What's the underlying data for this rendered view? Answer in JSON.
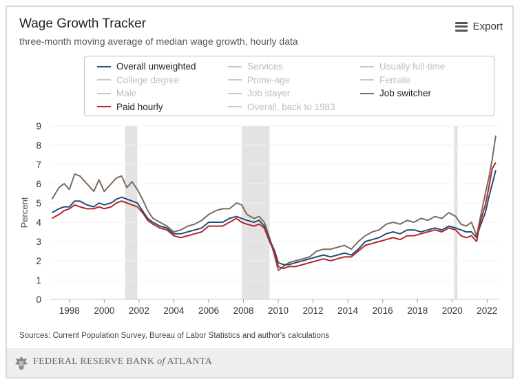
{
  "header": {
    "title": "Wage Growth Tracker",
    "subtitle": "three-month moving average of median wage growth, hourly data",
    "export_label": "Export",
    "export_icon": "menu-icon"
  },
  "legend": {
    "items": [
      {
        "label": "Overall unweighted",
        "color": "#1f4e79",
        "active": true
      },
      {
        "label": "Services",
        "color": "#c8c8c8",
        "active": false
      },
      {
        "label": "Usually full-time",
        "color": "#c8c8c8",
        "active": false
      },
      {
        "label": "College degree",
        "color": "#c8c8c8",
        "active": false
      },
      {
        "label": "Prime-age",
        "color": "#c8c8c8",
        "active": false
      },
      {
        "label": "Female",
        "color": "#c8c8c8",
        "active": false
      },
      {
        "label": "Male",
        "color": "#c8c8c8",
        "active": false
      },
      {
        "label": "Job stayer",
        "color": "#c8c8c8",
        "active": false
      },
      {
        "label": "Job switcher",
        "color": "#7b6a5d",
        "active": true
      },
      {
        "label": "Paid hourly",
        "color": "#b5262b",
        "active": true
      },
      {
        "label": "Overall, back to 1983",
        "color": "#c8c8c8",
        "active": false
      }
    ]
  },
  "chart_data": {
    "type": "line",
    "ylabel": "Percent",
    "ylim": [
      0,
      9
    ],
    "yticks": [
      "0",
      "1",
      "2",
      "3",
      "4",
      "5",
      "6",
      "7",
      "8",
      "9"
    ],
    "xlim": [
      1996.9,
      2022.7
    ],
    "xticks": [
      "1998",
      "2000",
      "2002",
      "2004",
      "2006",
      "2008",
      "2010",
      "2012",
      "2014",
      "2016",
      "2018",
      "2020",
      "2022"
    ],
    "recessions": [
      [
        2001.2,
        2001.9
      ],
      [
        2007.9,
        2009.5
      ],
      [
        2020.1,
        2020.3
      ]
    ],
    "series": [
      {
        "name": "Job switcher",
        "color": "#7b6a5d",
        "points": [
          [
            1997.0,
            5.2
          ],
          [
            1997.4,
            5.8
          ],
          [
            1997.7,
            6.0
          ],
          [
            1998.0,
            5.7
          ],
          [
            1998.3,
            6.5
          ],
          [
            1998.6,
            6.4
          ],
          [
            1999.0,
            6.0
          ],
          [
            1999.4,
            5.6
          ],
          [
            1999.7,
            6.2
          ],
          [
            2000.0,
            5.6
          ],
          [
            2000.4,
            6.0
          ],
          [
            2000.7,
            6.3
          ],
          [
            2001.0,
            6.4
          ],
          [
            2001.3,
            5.8
          ],
          [
            2001.6,
            6.1
          ],
          [
            2001.9,
            5.7
          ],
          [
            2002.2,
            5.2
          ],
          [
            2002.5,
            4.6
          ],
          [
            2002.8,
            4.2
          ],
          [
            2003.2,
            4.0
          ],
          [
            2003.6,
            3.8
          ],
          [
            2004.0,
            3.5
          ],
          [
            2004.4,
            3.6
          ],
          [
            2004.8,
            3.8
          ],
          [
            2005.2,
            3.9
          ],
          [
            2005.6,
            4.1
          ],
          [
            2006.0,
            4.4
          ],
          [
            2006.4,
            4.6
          ],
          [
            2006.8,
            4.7
          ],
          [
            2007.2,
            4.7
          ],
          [
            2007.6,
            5.0
          ],
          [
            2007.9,
            4.9
          ],
          [
            2008.2,
            4.4
          ],
          [
            2008.6,
            4.2
          ],
          [
            2008.9,
            4.3
          ],
          [
            2009.2,
            4.0
          ],
          [
            2009.5,
            3.2
          ],
          [
            2009.8,
            2.2
          ],
          [
            2010.0,
            1.5
          ],
          [
            2010.3,
            1.7
          ],
          [
            2010.6,
            1.9
          ],
          [
            2011.0,
            2.0
          ],
          [
            2011.4,
            2.1
          ],
          [
            2011.8,
            2.2
          ],
          [
            2012.2,
            2.5
          ],
          [
            2012.6,
            2.6
          ],
          [
            2013.0,
            2.6
          ],
          [
            2013.4,
            2.7
          ],
          [
            2013.8,
            2.8
          ],
          [
            2014.2,
            2.6
          ],
          [
            2014.6,
            3.0
          ],
          [
            2015.0,
            3.3
          ],
          [
            2015.4,
            3.5
          ],
          [
            2015.8,
            3.6
          ],
          [
            2016.2,
            3.9
          ],
          [
            2016.6,
            4.0
          ],
          [
            2017.0,
            3.9
          ],
          [
            2017.4,
            4.1
          ],
          [
            2017.8,
            4.0
          ],
          [
            2018.2,
            4.2
          ],
          [
            2018.6,
            4.1
          ],
          [
            2019.0,
            4.3
          ],
          [
            2019.4,
            4.2
          ],
          [
            2019.8,
            4.5
          ],
          [
            2020.2,
            4.3
          ],
          [
            2020.5,
            3.9
          ],
          [
            2020.8,
            3.8
          ],
          [
            2021.1,
            4.0
          ],
          [
            2021.4,
            3.3
          ],
          [
            2021.6,
            4.2
          ],
          [
            2021.9,
            5.5
          ],
          [
            2022.1,
            6.3
          ],
          [
            2022.3,
            7.3
          ],
          [
            2022.5,
            8.5
          ]
        ]
      },
      {
        "name": "Overall unweighted",
        "color": "#1f4e79",
        "points": [
          [
            1997.0,
            4.5
          ],
          [
            1997.4,
            4.7
          ],
          [
            1997.7,
            4.8
          ],
          [
            1998.0,
            4.8
          ],
          [
            1998.3,
            5.1
          ],
          [
            1998.6,
            5.1
          ],
          [
            1999.0,
            4.9
          ],
          [
            1999.4,
            4.8
          ],
          [
            1999.7,
            5.0
          ],
          [
            2000.0,
            4.9
          ],
          [
            2000.4,
            5.0
          ],
          [
            2000.7,
            5.2
          ],
          [
            2001.0,
            5.3
          ],
          [
            2001.3,
            5.2
          ],
          [
            2001.6,
            5.1
          ],
          [
            2001.9,
            5.0
          ],
          [
            2002.2,
            4.6
          ],
          [
            2002.5,
            4.2
          ],
          [
            2002.8,
            4.0
          ],
          [
            2003.2,
            3.8
          ],
          [
            2003.6,
            3.7
          ],
          [
            2004.0,
            3.4
          ],
          [
            2004.4,
            3.4
          ],
          [
            2004.8,
            3.5
          ],
          [
            2005.2,
            3.6
          ],
          [
            2005.6,
            3.7
          ],
          [
            2006.0,
            4.0
          ],
          [
            2006.4,
            4.0
          ],
          [
            2006.8,
            4.0
          ],
          [
            2007.2,
            4.2
          ],
          [
            2007.6,
            4.3
          ],
          [
            2007.9,
            4.2
          ],
          [
            2008.2,
            4.1
          ],
          [
            2008.6,
            4.0
          ],
          [
            2008.9,
            4.1
          ],
          [
            2009.2,
            3.8
          ],
          [
            2009.5,
            3.1
          ],
          [
            2009.8,
            2.5
          ],
          [
            2010.0,
            1.9
          ],
          [
            2010.3,
            1.8
          ],
          [
            2010.6,
            1.8
          ],
          [
            2011.0,
            1.9
          ],
          [
            2011.4,
            2.0
          ],
          [
            2011.8,
            2.1
          ],
          [
            2012.2,
            2.2
          ],
          [
            2012.6,
            2.3
          ],
          [
            2013.0,
            2.2
          ],
          [
            2013.4,
            2.3
          ],
          [
            2013.8,
            2.4
          ],
          [
            2014.2,
            2.3
          ],
          [
            2014.6,
            2.6
          ],
          [
            2015.0,
            3.0
          ],
          [
            2015.4,
            3.1
          ],
          [
            2015.8,
            3.2
          ],
          [
            2016.2,
            3.4
          ],
          [
            2016.6,
            3.5
          ],
          [
            2017.0,
            3.4
          ],
          [
            2017.4,
            3.6
          ],
          [
            2017.8,
            3.6
          ],
          [
            2018.2,
            3.5
          ],
          [
            2018.6,
            3.6
          ],
          [
            2019.0,
            3.7
          ],
          [
            2019.4,
            3.6
          ],
          [
            2019.8,
            3.8
          ],
          [
            2020.2,
            3.7
          ],
          [
            2020.5,
            3.6
          ],
          [
            2020.8,
            3.5
          ],
          [
            2021.1,
            3.5
          ],
          [
            2021.4,
            3.2
          ],
          [
            2021.6,
            3.8
          ],
          [
            2021.9,
            4.5
          ],
          [
            2022.1,
            5.3
          ],
          [
            2022.3,
            6.0
          ],
          [
            2022.5,
            6.7
          ]
        ]
      },
      {
        "name": "Paid hourly",
        "color": "#b5262b",
        "points": [
          [
            1997.0,
            4.2
          ],
          [
            1997.4,
            4.4
          ],
          [
            1997.7,
            4.6
          ],
          [
            1998.0,
            4.7
          ],
          [
            1998.3,
            4.9
          ],
          [
            1998.6,
            4.8
          ],
          [
            1999.0,
            4.7
          ],
          [
            1999.4,
            4.7
          ],
          [
            1999.7,
            4.8
          ],
          [
            2000.0,
            4.7
          ],
          [
            2000.4,
            4.8
          ],
          [
            2000.7,
            5.0
          ],
          [
            2001.0,
            5.1
          ],
          [
            2001.3,
            5.0
          ],
          [
            2001.6,
            4.9
          ],
          [
            2001.9,
            4.8
          ],
          [
            2002.2,
            4.5
          ],
          [
            2002.5,
            4.1
          ],
          [
            2002.8,
            3.9
          ],
          [
            2003.2,
            3.7
          ],
          [
            2003.6,
            3.6
          ],
          [
            2004.0,
            3.3
          ],
          [
            2004.4,
            3.2
          ],
          [
            2004.8,
            3.3
          ],
          [
            2005.2,
            3.4
          ],
          [
            2005.6,
            3.5
          ],
          [
            2006.0,
            3.8
          ],
          [
            2006.4,
            3.8
          ],
          [
            2006.8,
            3.8
          ],
          [
            2007.2,
            4.0
          ],
          [
            2007.6,
            4.2
          ],
          [
            2007.9,
            4.0
          ],
          [
            2008.2,
            3.9
          ],
          [
            2008.6,
            3.8
          ],
          [
            2008.9,
            3.9
          ],
          [
            2009.2,
            3.7
          ],
          [
            2009.5,
            3.0
          ],
          [
            2009.8,
            2.4
          ],
          [
            2010.0,
            1.7
          ],
          [
            2010.3,
            1.6
          ],
          [
            2010.6,
            1.7
          ],
          [
            2011.0,
            1.7
          ],
          [
            2011.4,
            1.8
          ],
          [
            2011.8,
            1.9
          ],
          [
            2012.2,
            2.0
          ],
          [
            2012.6,
            2.1
          ],
          [
            2013.0,
            2.0
          ],
          [
            2013.4,
            2.1
          ],
          [
            2013.8,
            2.2
          ],
          [
            2014.2,
            2.2
          ],
          [
            2014.6,
            2.5
          ],
          [
            2015.0,
            2.8
          ],
          [
            2015.4,
            2.9
          ],
          [
            2015.8,
            3.0
          ],
          [
            2016.2,
            3.1
          ],
          [
            2016.6,
            3.2
          ],
          [
            2017.0,
            3.1
          ],
          [
            2017.4,
            3.3
          ],
          [
            2017.8,
            3.3
          ],
          [
            2018.2,
            3.4
          ],
          [
            2018.6,
            3.5
          ],
          [
            2019.0,
            3.6
          ],
          [
            2019.4,
            3.5
          ],
          [
            2019.8,
            3.7
          ],
          [
            2020.2,
            3.6
          ],
          [
            2020.5,
            3.3
          ],
          [
            2020.8,
            3.2
          ],
          [
            2021.1,
            3.3
          ],
          [
            2021.4,
            3.0
          ],
          [
            2021.6,
            4.0
          ],
          [
            2021.9,
            4.9
          ],
          [
            2022.1,
            5.8
          ],
          [
            2022.3,
            6.8
          ],
          [
            2022.5,
            7.1
          ]
        ]
      }
    ]
  },
  "sources": "Sources: Current Population Survey, Bureau of Labor Statistics and author's calculations",
  "footer": {
    "logo_icon": "eagle-seal-icon",
    "bank_name": "FEDERAL RESERVE BANK of ATLANTA"
  }
}
